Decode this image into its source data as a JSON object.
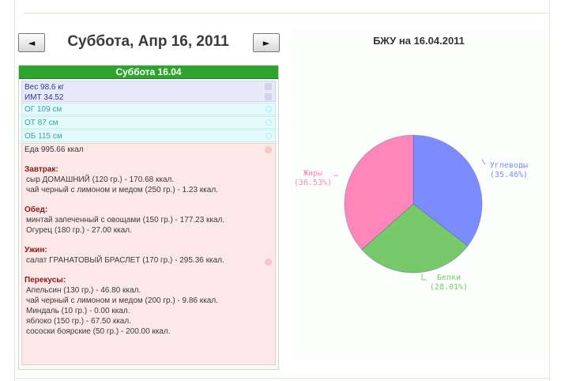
{
  "navigation": {
    "prev_label": "◄",
    "next_label": "►",
    "title": "Суббота, Апр 16, 2011"
  },
  "day_panel": {
    "header": "Суббота 16.04",
    "weight": "Вес 98.6 кг",
    "bmi": "ИМТ 34.52",
    "measurements": [
      "ОГ 109 см",
      "ОТ 87 см",
      "ОБ 115 см"
    ],
    "food_total": "Еда 995.66 ккал",
    "meals": [
      {
        "title": "Завтрак:",
        "items": [
          "сыр ДОМАШНИЙ (120 гр.) - 170.68 ккал.",
          "чай черный с лимоном и медом (250 гр.) - 1.23 ккал."
        ]
      },
      {
        "title": "Обед:",
        "items": [
          "минтай запеченный с овощами (150 гр.) - 177.23 ккал.",
          "Огурец (180 гр.) - 27.00 ккал."
        ]
      },
      {
        "title": "Ужин:",
        "items": [
          "салат ГРАНАТОВЫЙ БРАСЛЕТ (170 гр.) - 295.36 ккал."
        ]
      },
      {
        "title": "Перекусы:",
        "items": [
          "Апельсин (130 гр.) - 46.80 ккал.",
          "чай черный с лимоном и медом (200 гр.) - 9.86 ккал.",
          "Миндаль (10 гр.) - 0.00 ккал.",
          "яблоко (150 гр.) - 67.50 ккал.",
          "сососки боярские (50 гр.) - 200.00 ккал."
        ]
      }
    ]
  },
  "chart_data": {
    "type": "pie",
    "title": "БЖУ на 16.04.2011",
    "slices": [
      {
        "name": "Углеводы",
        "value": 35.46,
        "label": "(35.46%)",
        "color": "#7b8cff"
      },
      {
        "name": "Белки",
        "value": 28.01,
        "label": "(28.01%)",
        "color": "#78c96a"
      },
      {
        "name": "Жиры",
        "value": 36.53,
        "label": "(36.53%)",
        "color": "#ff86b8"
      }
    ]
  }
}
